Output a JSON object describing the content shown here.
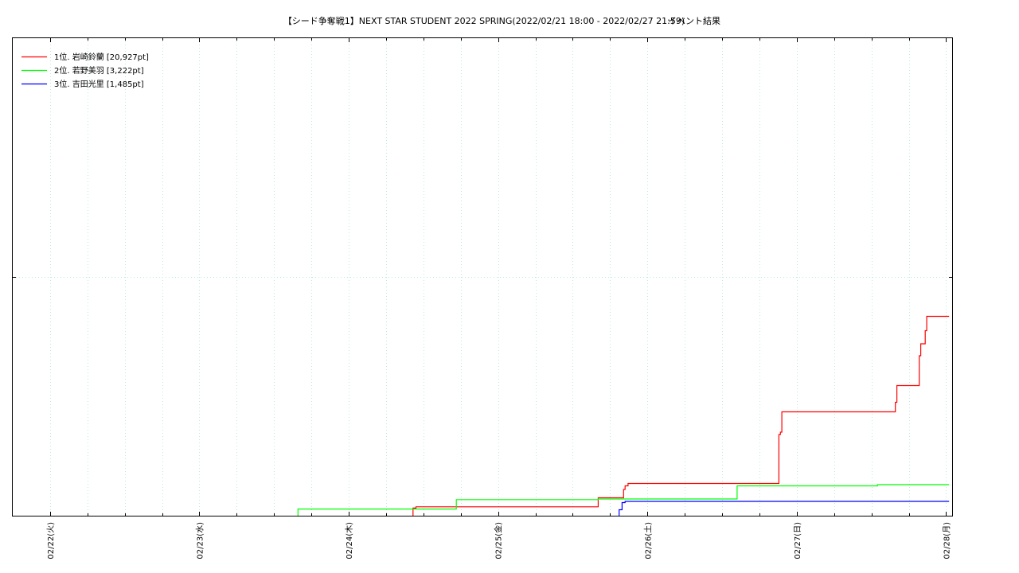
{
  "chart_data": {
    "type": "line",
    "title": "【シード争奪戦1】NEXT STAR STUDENT 2022 SPRING(2022/02/21 18:00 - 2022/02/27 21:59)",
    "subtitle": "イベント結果",
    "x_ticks": [
      "02/22(火)",
      "02/23(水)",
      "02/24(木)",
      "02/25(金)",
      "02/26(土)",
      "02/27(日)",
      "02/28(月)"
    ],
    "x_domain": [
      -0.25,
      6.04
    ],
    "ylim": [
      0,
      40000
    ],
    "y_ticks": [
      20000
    ],
    "grid": true,
    "legend": "top-left",
    "series": [
      {
        "name": "1位. 岩崎鈴蘭 [20,927pt]",
        "color": "#ff0000",
        "points": [
          [
            2.43,
            0
          ],
          [
            2.43,
            640
          ],
          [
            2.45,
            640
          ],
          [
            2.45,
            750
          ],
          [
            3.67,
            750
          ],
          [
            3.67,
            1500
          ],
          [
            3.84,
            1500
          ],
          [
            3.84,
            2200
          ],
          [
            3.85,
            2200
          ],
          [
            3.85,
            2500
          ],
          [
            3.87,
            2500
          ],
          [
            3.87,
            2700
          ],
          [
            4.88,
            2700
          ],
          [
            4.88,
            6800
          ],
          [
            4.89,
            6800
          ],
          [
            4.89,
            7000
          ],
          [
            4.9,
            7000
          ],
          [
            4.9,
            8700
          ],
          [
            5.66,
            8700
          ],
          [
            5.66,
            9500
          ],
          [
            5.67,
            9500
          ],
          [
            5.67,
            10900
          ],
          [
            5.82,
            10900
          ],
          [
            5.82,
            13400
          ],
          [
            5.83,
            13400
          ],
          [
            5.83,
            14400
          ],
          [
            5.86,
            14400
          ],
          [
            5.86,
            15500
          ],
          [
            5.87,
            15500
          ],
          [
            5.87,
            16700
          ],
          [
            6.02,
            16700
          ]
        ]
      },
      {
        "name": "2位. 若野美羽 [3,222pt]",
        "color": "#00ff00",
        "points": [
          [
            1.66,
            0
          ],
          [
            1.66,
            560
          ],
          [
            2.72,
            560
          ],
          [
            2.72,
            1350
          ],
          [
            3.67,
            1350
          ],
          [
            3.67,
            1400
          ],
          [
            4.6,
            1400
          ],
          [
            4.6,
            2500
          ],
          [
            5.54,
            2500
          ],
          [
            5.54,
            2600
          ],
          [
            6.02,
            2600
          ]
        ]
      },
      {
        "name": "3位. 吉田光里 [1,485pt]",
        "color": "#0000ff",
        "points": [
          [
            3.81,
            0
          ],
          [
            3.81,
            500
          ],
          [
            3.83,
            500
          ],
          [
            3.83,
            1100
          ],
          [
            3.85,
            1100
          ],
          [
            3.85,
            1200
          ],
          [
            6.02,
            1200
          ]
        ]
      }
    ]
  }
}
